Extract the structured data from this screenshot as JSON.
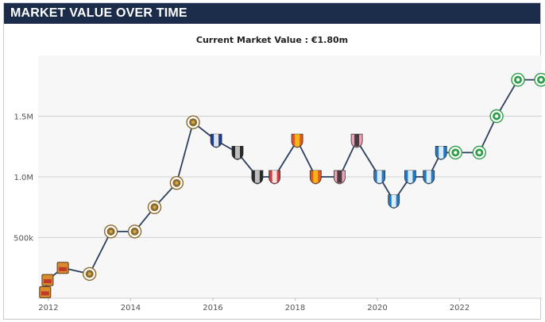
{
  "header": {
    "title": "MARKET VALUE OVER TIME"
  },
  "chart_data": {
    "type": "line",
    "title": "",
    "subtitle": "Current Market Value : €1.80m",
    "xlabel": "",
    "ylabel": "",
    "xlim": [
      2011.75,
      2024.0
    ],
    "ylim": [
      0,
      2000000
    ],
    "grid": true,
    "x_ticks": [
      {
        "value": 2012,
        "label": "2012"
      },
      {
        "value": 2014,
        "label": "2014"
      },
      {
        "value": 2016,
        "label": "2016"
      },
      {
        "value": 2018,
        "label": "2018"
      },
      {
        "value": 2020,
        "label": "2020"
      },
      {
        "value": 2022,
        "label": "2022"
      }
    ],
    "y_ticks": [
      {
        "value": 500000,
        "label": "500k"
      },
      {
        "value": 1000000,
        "label": "1.0M"
      },
      {
        "value": 1500000,
        "label": "1.5M"
      }
    ],
    "line_color": "#2b3f5f",
    "series": [
      {
        "name": "",
        "points": [
          {
            "x": 2011.92,
            "y": 50000,
            "club": "club-a"
          },
          {
            "x": 2011.98,
            "y": 150000,
            "club": "club-a"
          },
          {
            "x": 2012.35,
            "y": 250000,
            "club": "club-a"
          },
          {
            "x": 2013.0,
            "y": 200000,
            "club": "club-b"
          },
          {
            "x": 2013.52,
            "y": 550000,
            "club": "club-b"
          },
          {
            "x": 2014.1,
            "y": 550000,
            "club": "club-b"
          },
          {
            "x": 2014.58,
            "y": 750000,
            "club": "club-b"
          },
          {
            "x": 2015.12,
            "y": 950000,
            "club": "club-b"
          },
          {
            "x": 2015.52,
            "y": 1450000,
            "club": "club-b"
          },
          {
            "x": 2016.08,
            "y": 1300000,
            "club": "club-c"
          },
          {
            "x": 2016.6,
            "y": 1200000,
            "club": "club-d"
          },
          {
            "x": 2017.08,
            "y": 1000000,
            "club": "club-d"
          },
          {
            "x": 2017.5,
            "y": 1000000,
            "club": "club-e"
          },
          {
            "x": 2018.05,
            "y": 1300000,
            "club": "club-f"
          },
          {
            "x": 2018.5,
            "y": 1000000,
            "club": "club-f"
          },
          {
            "x": 2019.08,
            "y": 1000000,
            "club": "club-g"
          },
          {
            "x": 2019.5,
            "y": 1300000,
            "club": "club-g"
          },
          {
            "x": 2020.05,
            "y": 1000000,
            "club": "club-h"
          },
          {
            "x": 2020.4,
            "y": 800000,
            "club": "club-h"
          },
          {
            "x": 2020.8,
            "y": 1000000,
            "club": "club-h"
          },
          {
            "x": 2021.25,
            "y": 1000000,
            "club": "club-h"
          },
          {
            "x": 2021.55,
            "y": 1200000,
            "club": "club-h"
          },
          {
            "x": 2021.9,
            "y": 1200000,
            "club": "club-i"
          },
          {
            "x": 2022.48,
            "y": 1200000,
            "club": "club-i"
          },
          {
            "x": 2022.9,
            "y": 1500000,
            "club": "club-i"
          },
          {
            "x": 2023.42,
            "y": 1800000,
            "club": "club-i"
          },
          {
            "x": 2023.98,
            "y": 1800000,
            "club": "club-i"
          }
        ]
      }
    ],
    "club_colors": {
      "club-a": {
        "primary": "#d98c2e",
        "secondary": "#c0392b"
      },
      "club-b": {
        "primary": "#8b6a2e",
        "secondary": "#d2a64a"
      },
      "club-c": {
        "primary": "#1f3f8f",
        "secondary": "#ffffff"
      },
      "club-d": {
        "primary": "#2a2a2a",
        "secondary": "#d8d8d8"
      },
      "club-e": {
        "primary": "#d63a3a",
        "secondary": "#ffffff"
      },
      "club-f": {
        "primary": "#e8541e",
        "secondary": "#f5c518"
      },
      "club-g": {
        "primary": "#f2a0b7",
        "secondary": "#2a2a2a"
      },
      "club-h": {
        "primary": "#1f7ac8",
        "secondary": "#ffffff"
      },
      "club-i": {
        "primary": "#2e9e4a",
        "secondary": "#ffffff"
      }
    }
  }
}
